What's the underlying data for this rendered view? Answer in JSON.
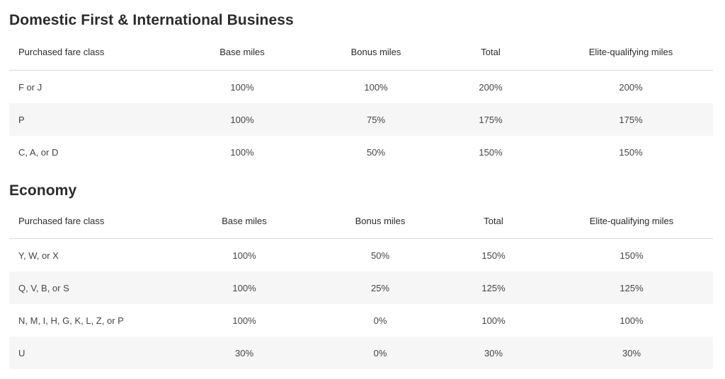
{
  "sections": [
    {
      "title": "Domestic First & International Business",
      "headers": [
        "Purchased fare class",
        "Base miles",
        "Bonus miles",
        "Total",
        "Elite-qualifying miles"
      ],
      "rows": [
        [
          "F or J",
          "100%",
          "100%",
          "200%",
          "200%"
        ],
        [
          "P",
          "100%",
          "75%",
          "175%",
          "175%"
        ],
        [
          "C, A, or D",
          "100%",
          "50%",
          "150%",
          "150%"
        ]
      ]
    },
    {
      "title": "Economy",
      "headers": [
        "Purchased fare class",
        "Base miles",
        "Bonus miles",
        "Total",
        "Elite-qualifying miles"
      ],
      "rows": [
        [
          "Y, W, or X",
          "100%",
          "50%",
          "150%",
          "150%"
        ],
        [
          "Q, V, B, or S",
          "100%",
          "25%",
          "125%",
          "125%"
        ],
        [
          "N, M, I, H, G, K, L, Z, or P",
          "100%",
          "0%",
          "100%",
          "100%"
        ],
        [
          "U",
          "30%",
          "0%",
          "30%",
          "30%"
        ]
      ]
    }
  ]
}
